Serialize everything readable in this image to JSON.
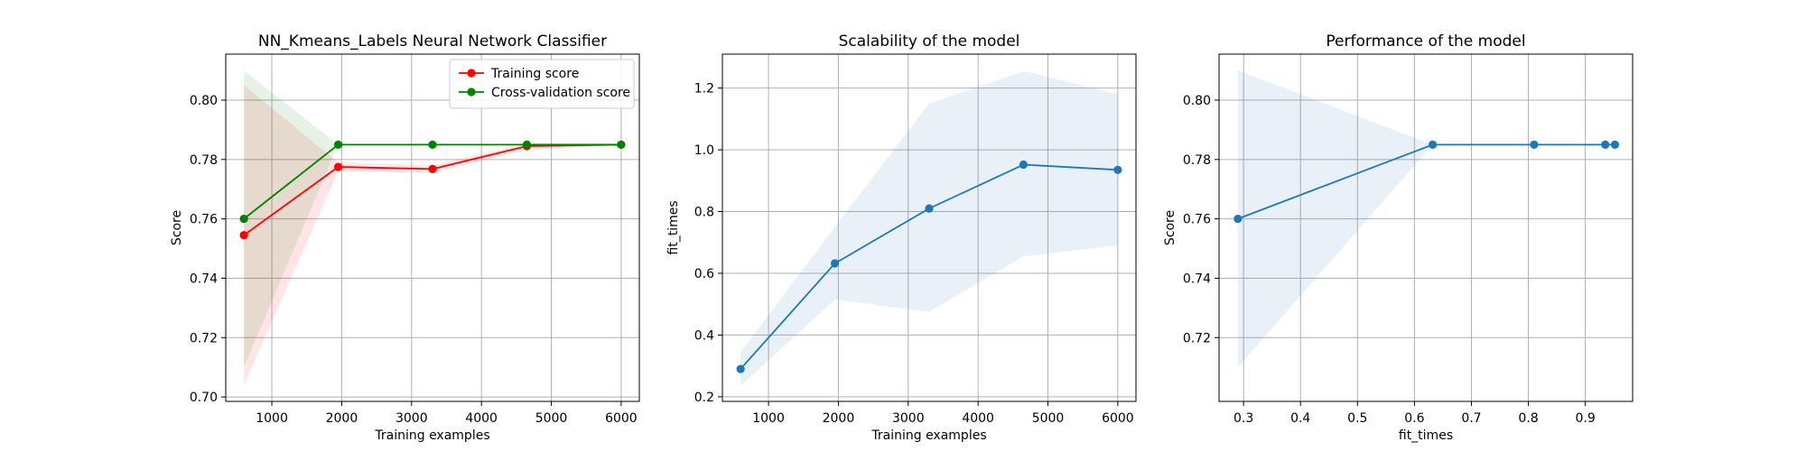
{
  "chart_data": [
    {
      "type": "line",
      "title": "NN_Kmeans_Labels Neural Network Classifier",
      "xlabel": "Training examples",
      "ylabel": "Score",
      "xlim": [
        340,
        6260
      ],
      "ylim": [
        0.6985,
        0.8155
      ],
      "xticks": [
        1000,
        2000,
        3000,
        4000,
        5000,
        6000
      ],
      "yticks": [
        0.7,
        0.72,
        0.74,
        0.76,
        0.78,
        0.8
      ],
      "ytick_format": 2,
      "grid": true,
      "legend": "top-right",
      "series": [
        {
          "name": "Training score",
          "color": "#ff0000",
          "band_color": "#ff0000",
          "x": [
            600,
            1950,
            3300,
            4650,
            6000
          ],
          "y": [
            0.7545,
            0.7775,
            0.7768,
            0.7845,
            0.785
          ],
          "band_lower": [
            0.704,
            0.776,
            0.7755,
            0.7835,
            0.7845
          ],
          "band_upper": [
            0.805,
            0.779,
            0.778,
            0.7855,
            0.7855
          ]
        },
        {
          "name": "Cross-validation score",
          "color": "#008000",
          "band_color": "#008000",
          "x": [
            600,
            1950,
            3300,
            4650,
            6000
          ],
          "y": [
            0.76,
            0.785,
            0.785,
            0.785,
            0.785
          ],
          "band_lower": [
            0.71,
            0.785,
            0.785,
            0.785,
            0.785
          ],
          "band_upper": [
            0.81,
            0.785,
            0.785,
            0.785,
            0.785
          ]
        }
      ]
    },
    {
      "type": "line",
      "title": "Scalability of the model",
      "xlabel": "Training examples",
      "ylabel": "fit_times",
      "xlim": [
        340,
        6260
      ],
      "ylim": [
        0.185,
        1.31
      ],
      "xticks": [
        1000,
        2000,
        3000,
        4000,
        5000,
        6000
      ],
      "yticks": [
        0.2,
        0.4,
        0.6,
        0.8,
        1.0,
        1.2
      ],
      "ytick_format": 1,
      "grid": true,
      "series": [
        {
          "name": "",
          "color": "#1f77b4",
          "band_color": "#1f77b4",
          "x": [
            600,
            1950,
            3300,
            4650,
            6000
          ],
          "y": [
            0.29,
            0.632,
            0.81,
            0.952,
            0.935
          ],
          "band_lower": [
            0.235,
            0.515,
            0.475,
            0.655,
            0.69
          ],
          "band_upper": [
            0.345,
            0.75,
            1.15,
            1.255,
            1.18
          ]
        }
      ]
    },
    {
      "type": "line",
      "title": "Performance of the model",
      "xlabel": "fit_times",
      "ylabel": "Score",
      "xlim": [
        0.257,
        0.983
      ],
      "ylim": [
        0.6985,
        0.8155
      ],
      "xticks": [
        0.3,
        0.4,
        0.5,
        0.6,
        0.7,
        0.8,
        0.9
      ],
      "yticks": [
        0.72,
        0.74,
        0.76,
        0.78,
        0.8
      ],
      "xtick_format": 1,
      "ytick_format": 2,
      "grid": true,
      "series": [
        {
          "name": "",
          "color": "#1f77b4",
          "band_color": "#1f77b4",
          "x": [
            0.29,
            0.632,
            0.81,
            0.935,
            0.952
          ],
          "y": [
            0.76,
            0.785,
            0.785,
            0.785,
            0.785
          ],
          "band_lower": [
            0.71,
            0.785,
            0.785,
            0.785,
            0.785
          ],
          "band_upper": [
            0.81,
            0.785,
            0.785,
            0.785,
            0.785
          ]
        }
      ]
    }
  ]
}
